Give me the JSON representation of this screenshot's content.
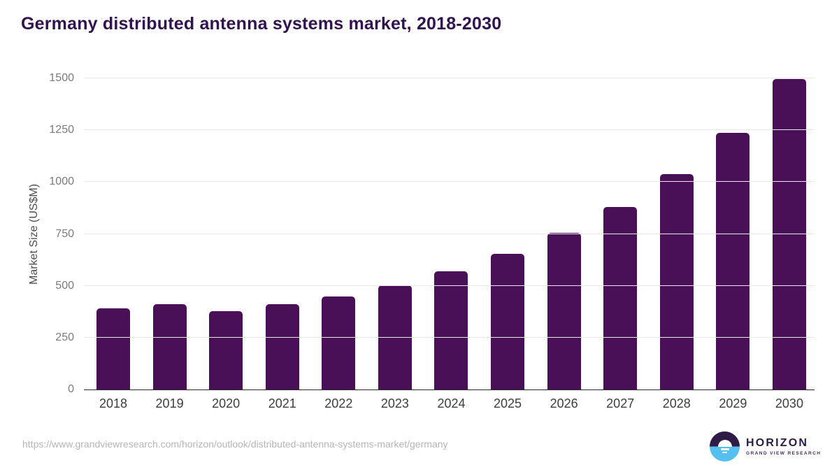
{
  "title": "Germany distributed antenna systems market, 2018-2030",
  "chart_data": {
    "type": "bar",
    "title": "Germany distributed antenna systems market, 2018-2030",
    "categories": [
      "2018",
      "2019",
      "2020",
      "2021",
      "2022",
      "2023",
      "2024",
      "2025",
      "2026",
      "2027",
      "2028",
      "2029",
      "2030"
    ],
    "values": [
      390,
      410,
      377,
      411,
      447,
      501,
      569,
      654,
      755,
      881,
      1038,
      1238,
      1496
    ],
    "xlabel": "",
    "ylabel": "Market Size (US$M)",
    "ylim": [
      0,
      1500
    ],
    "yticks": [
      0,
      250,
      500,
      750,
      1000,
      1250,
      1500
    ],
    "grid": true,
    "legend": false,
    "bar_color": "#4a1057"
  },
  "footer": {
    "source_url": "https://www.grandviewresearch.com/horizon/outlook/distributed-antenna-systems-market/germany",
    "logo": {
      "brand": "HORIZON",
      "subbrand": "GRAND VIEW RESEARCH"
    }
  },
  "colors": {
    "title_text": "#31134f",
    "bar": "#4a1057",
    "gridline": "#e8e8e8",
    "axis_line": "#2a2a2a",
    "y_tick_text": "#7b7b7b",
    "x_tick_text": "#3d3d3d",
    "y_axis_label_text": "#4d4d4d",
    "source_url_text": "#b5b5b5",
    "logo_purple": "#2e1a47",
    "logo_blue": "#55c0f0"
  }
}
